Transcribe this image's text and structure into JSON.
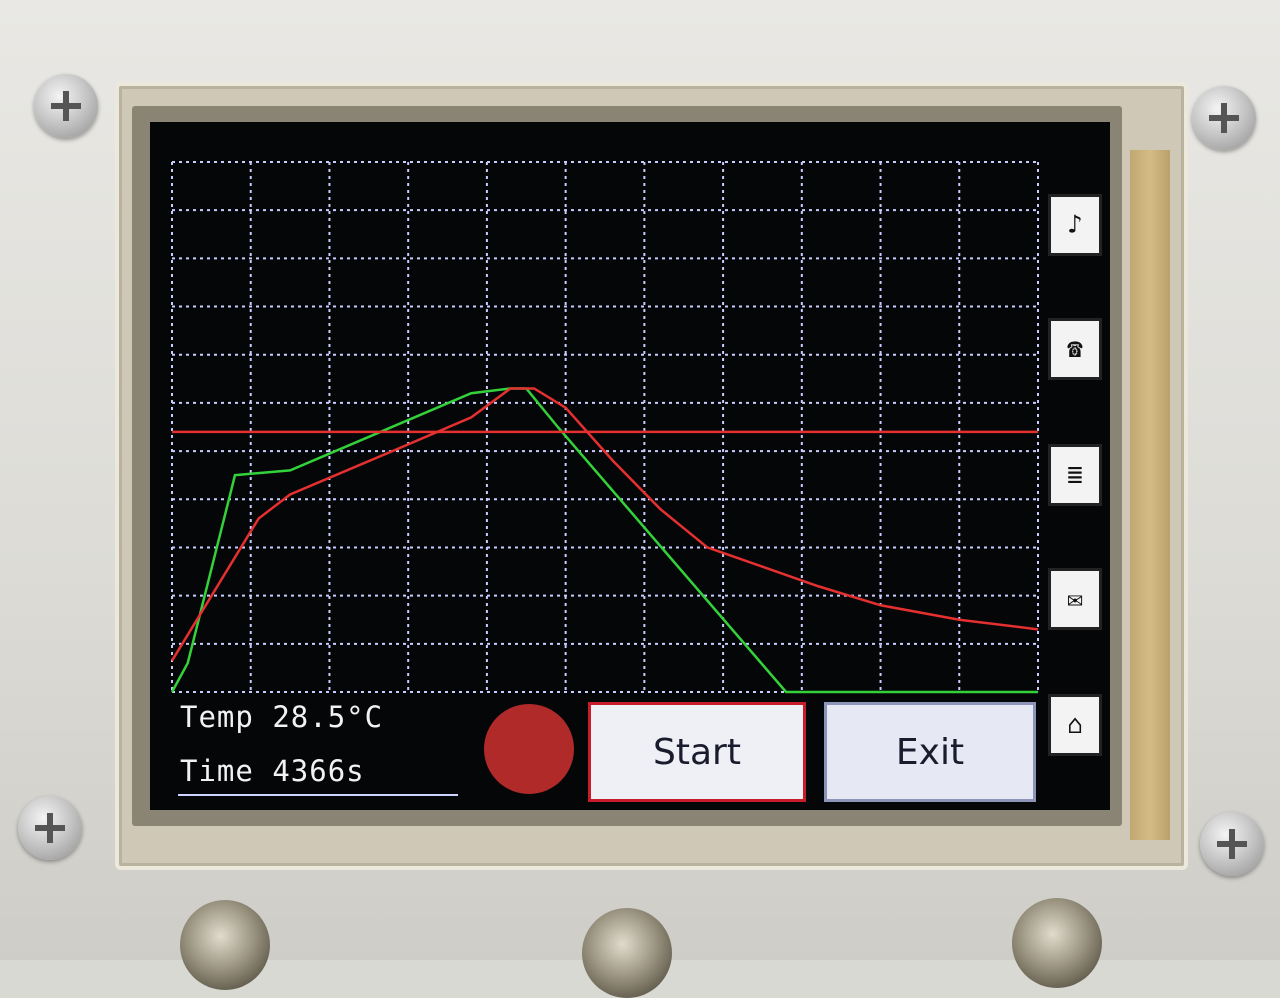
{
  "readouts": {
    "temp_label": "Temp",
    "temp_value": "28.5°C",
    "time_label": "Time",
    "time_value": "4366s"
  },
  "buttons": {
    "start_label": "Start",
    "exit_label": "Exit"
  },
  "side_buttons": [
    {
      "name": "music-note-icon",
      "glyph": "♪"
    },
    {
      "name": "phone-icon",
      "glyph": "☎"
    },
    {
      "name": "list-icon",
      "glyph": "≣"
    },
    {
      "name": "mail-icon",
      "glyph": "✉"
    },
    {
      "name": "home-icon",
      "glyph": "⌂"
    }
  ],
  "colors": {
    "grid": "#c8ccff",
    "target_profile": "#33d23a",
    "measured": "#e53030",
    "threshold": "#e53030",
    "status_dot": "#b02a2a"
  },
  "chart_data": {
    "type": "line",
    "grid": true,
    "x_divisions": 11,
    "y_divisions": 11,
    "series": [
      {
        "color": "#33d23a",
        "points": [
          [
            0,
            0.0
          ],
          [
            0.2,
            0.6
          ],
          [
            0.8,
            4.5
          ],
          [
            1.5,
            4.6
          ],
          [
            3.8,
            6.2
          ],
          [
            4.3,
            6.3
          ],
          [
            4.5,
            6.3
          ],
          [
            4.9,
            5.5
          ],
          [
            7.8,
            0.0
          ],
          [
            11,
            0.0
          ]
        ]
      },
      {
        "color": "#e53030",
        "points": [
          [
            0,
            0.65
          ],
          [
            1.1,
            3.6
          ],
          [
            1.5,
            4.1
          ],
          [
            2.8,
            5.0
          ],
          [
            3.8,
            5.7
          ],
          [
            4.3,
            6.3
          ],
          [
            4.6,
            6.3
          ],
          [
            5.0,
            5.9
          ],
          [
            5.6,
            4.8
          ],
          [
            6.2,
            3.8
          ],
          [
            6.8,
            3.0
          ],
          [
            7.5,
            2.6
          ],
          [
            8.2,
            2.2
          ],
          [
            9.0,
            1.8
          ],
          [
            10.0,
            1.5
          ],
          [
            11.0,
            1.3
          ]
        ]
      },
      {
        "color": "#e53030",
        "points": [
          [
            0,
            5.4
          ],
          [
            11,
            5.4
          ]
        ]
      }
    ]
  }
}
